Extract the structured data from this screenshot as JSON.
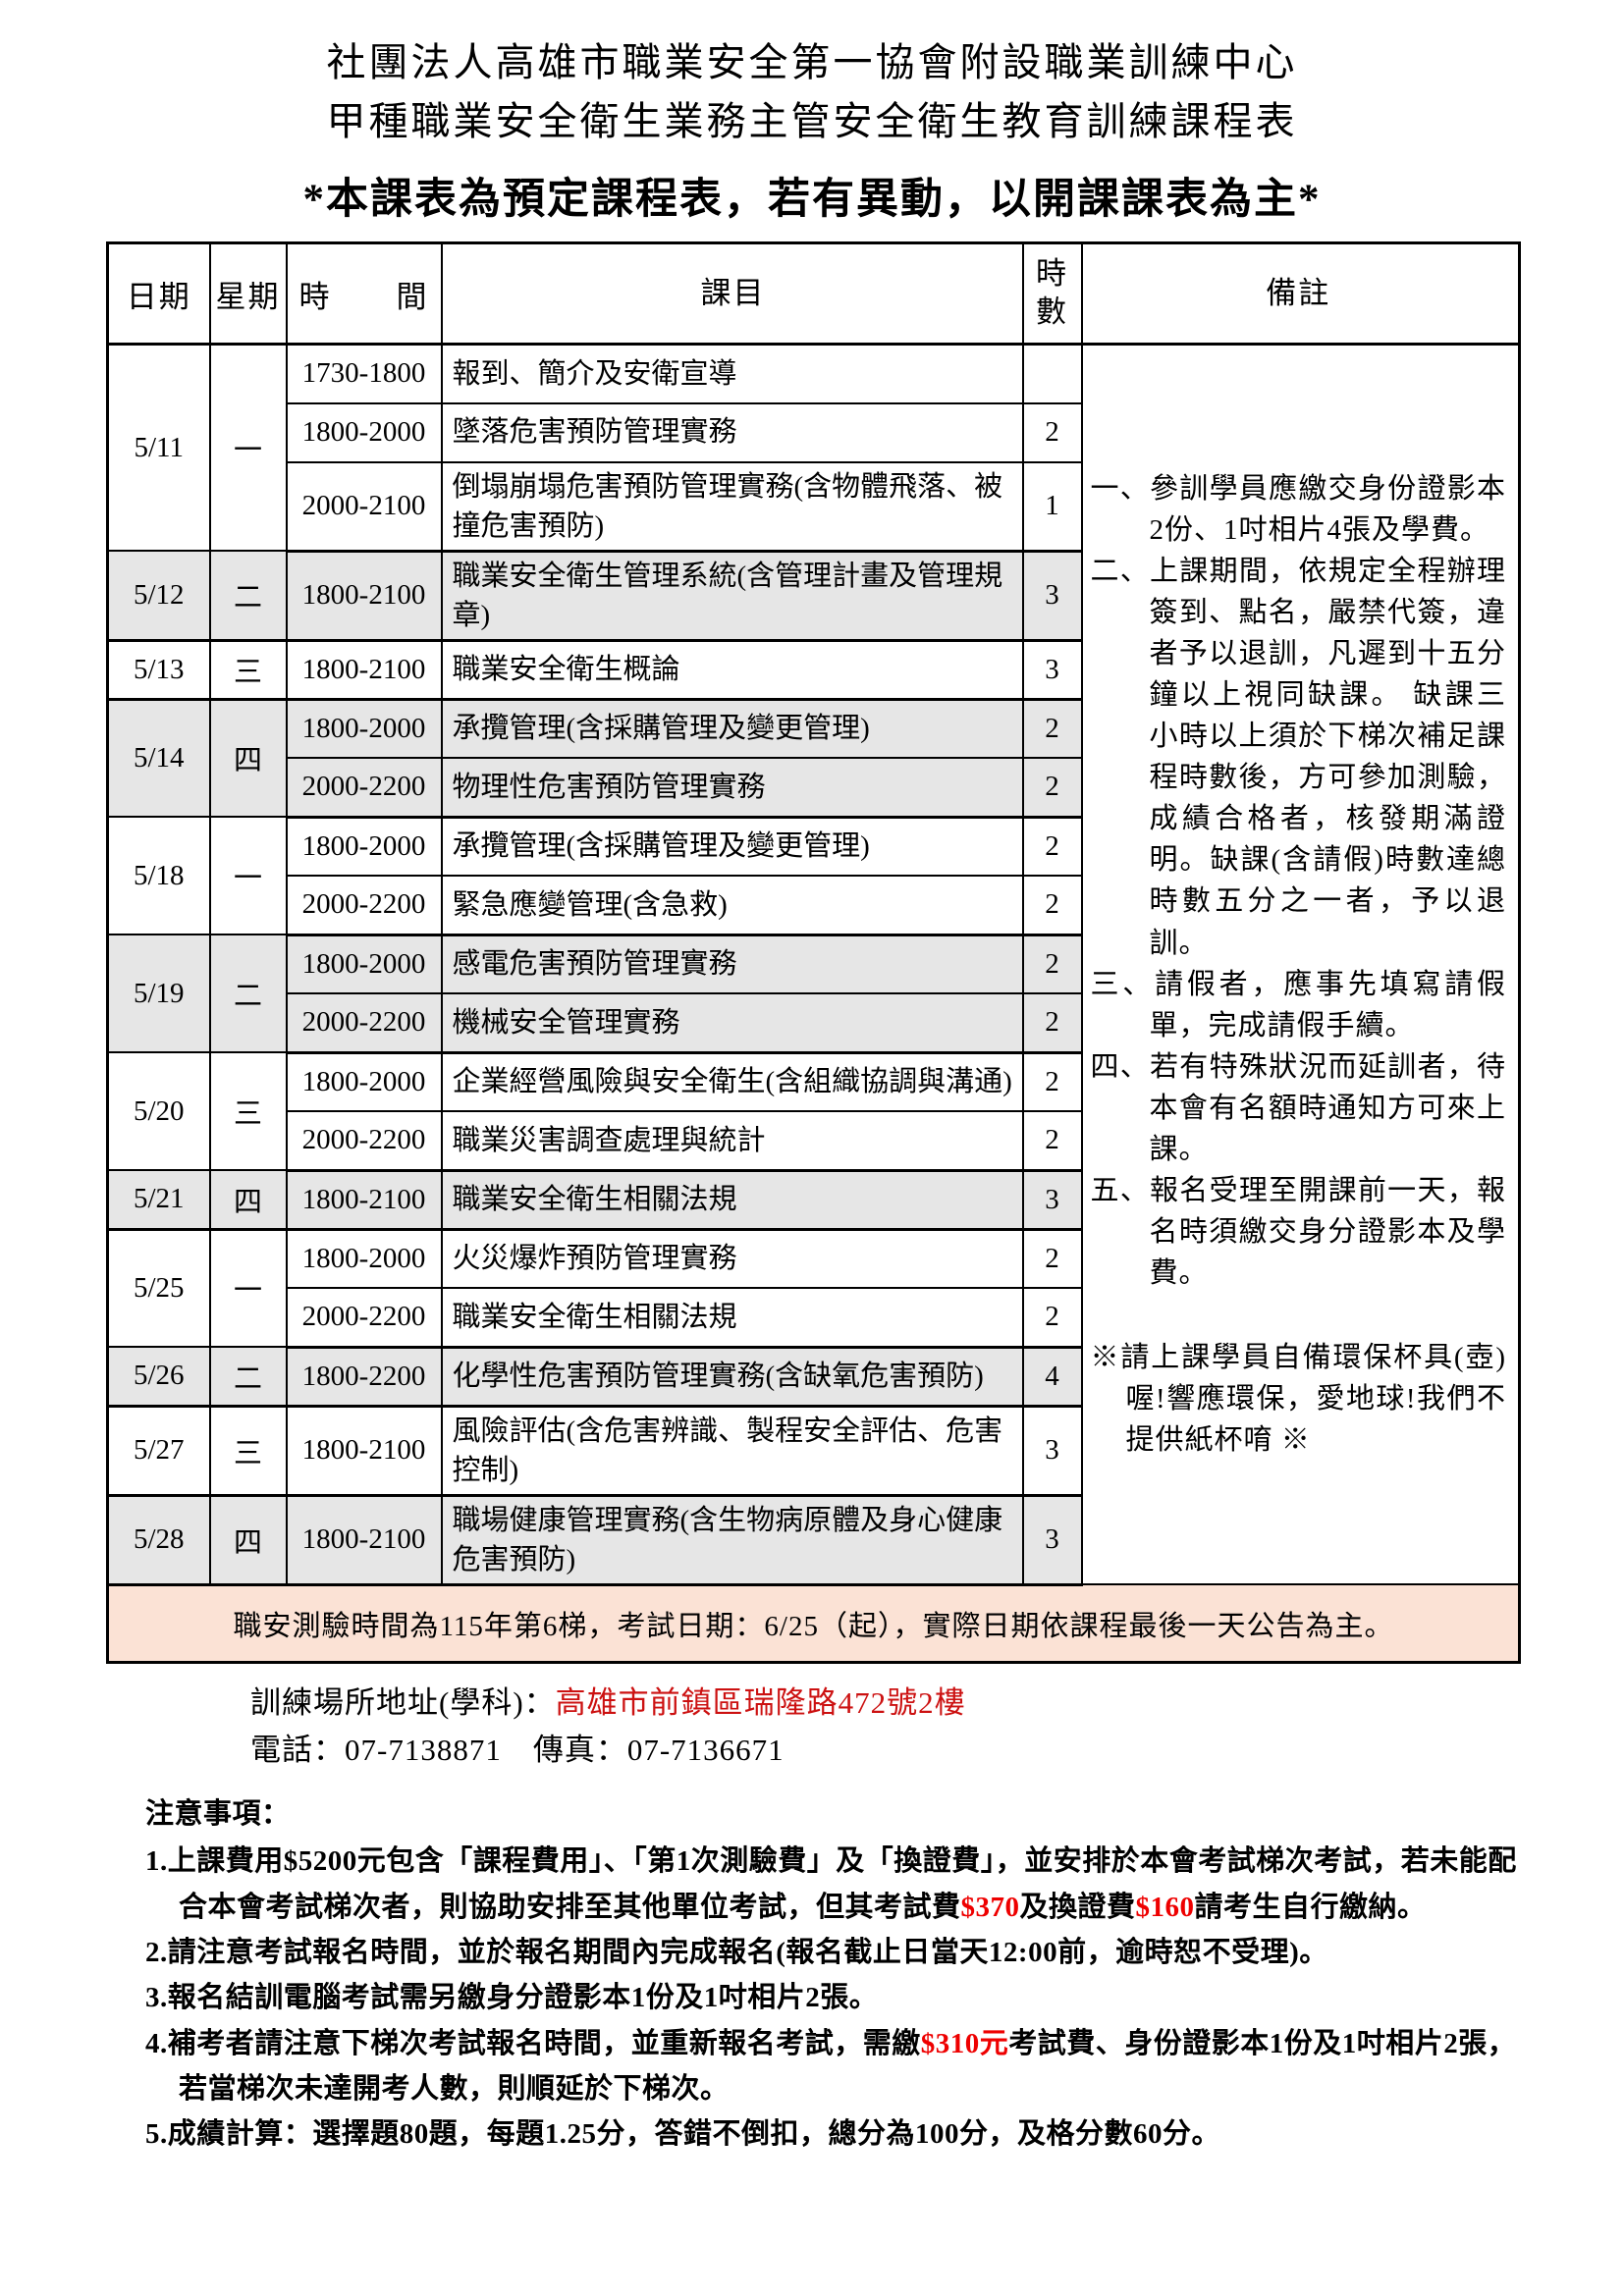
{
  "page": {
    "title_line1": "社團法人高雄市職業安全第一協會附設職業訓練中心",
    "title_line2": "甲種職業安全衛生業務主管安全衛生教育訓練課程表",
    "notice_line": "*本課表為預定課程表，若有異動，以開課課表為主*"
  },
  "table": {
    "headers": {
      "date": "日期",
      "weekday": "星期",
      "time": "時　　間",
      "subject": "課目",
      "hours": "時數",
      "remark": "備註"
    },
    "groups": [
      {
        "date": "5/11",
        "weekday": "一",
        "shaded": false,
        "sessions": [
          {
            "time": "1730-1800",
            "subject": "報到、簡介及安衛宣導",
            "hours": ""
          },
          {
            "time": "1800-2000",
            "subject": "墜落危害預防管理實務",
            "hours": "2"
          },
          {
            "time": "2000-2100",
            "subject": "倒塌崩塌危害預防管理實務(含物體飛落、被撞危害預防)",
            "hours": "1"
          }
        ]
      },
      {
        "date": "5/12",
        "weekday": "二",
        "shaded": true,
        "sessions": [
          {
            "time": "1800-2100",
            "subject": "職業安全衛生管理系統(含管理計畫及管理規章)",
            "hours": "3"
          }
        ]
      },
      {
        "date": "5/13",
        "weekday": "三",
        "shaded": false,
        "sessions": [
          {
            "time": "1800-2100",
            "subject": "職業安全衛生概論",
            "hours": "3"
          }
        ]
      },
      {
        "date": "5/14",
        "weekday": "四",
        "shaded": true,
        "sessions": [
          {
            "time": "1800-2000",
            "subject": "承攬管理(含採購管理及變更管理)",
            "hours": "2"
          },
          {
            "time": "2000-2200",
            "subject": "物理性危害預防管理實務",
            "hours": "2"
          }
        ]
      },
      {
        "date": "5/18",
        "weekday": "一",
        "shaded": false,
        "sessions": [
          {
            "time": "1800-2000",
            "subject": "承攬管理(含採購管理及變更管理)",
            "hours": "2"
          },
          {
            "time": "2000-2200",
            "subject": "緊急應變管理(含急救)",
            "hours": "2"
          }
        ]
      },
      {
        "date": "5/19",
        "weekday": "二",
        "shaded": true,
        "sessions": [
          {
            "time": "1800-2000",
            "subject": "感電危害預防管理實務",
            "hours": "2"
          },
          {
            "time": "2000-2200",
            "subject": "機械安全管理實務",
            "hours": "2"
          }
        ]
      },
      {
        "date": "5/20",
        "weekday": "三",
        "shaded": false,
        "sessions": [
          {
            "time": "1800-2000",
            "subject": "企業經營風險與安全衛生(含組織協調與溝通)",
            "hours": "2"
          },
          {
            "time": "2000-2200",
            "subject": "職業災害調查處理與統計",
            "hours": "2"
          }
        ]
      },
      {
        "date": "5/21",
        "weekday": "四",
        "shaded": true,
        "sessions": [
          {
            "time": "1800-2100",
            "subject": "職業安全衛生相關法規",
            "hours": "3"
          }
        ]
      },
      {
        "date": "5/25",
        "weekday": "一",
        "shaded": false,
        "sessions": [
          {
            "time": "1800-2000",
            "subject": "火災爆炸預防管理實務",
            "hours": "2"
          },
          {
            "time": "2000-2200",
            "subject": "職業安全衛生相關法規",
            "hours": "2"
          }
        ]
      },
      {
        "date": "5/26",
        "weekday": "二",
        "shaded": true,
        "sessions": [
          {
            "time": "1800-2200",
            "subject": "化學性危害預防管理實務(含缺氧危害預防)",
            "hours": "4"
          }
        ]
      },
      {
        "date": "5/27",
        "weekday": "三",
        "shaded": false,
        "sessions": [
          {
            "time": "1800-2100",
            "subject": "風險評估(含危害辨識、製程安全評估、危害控制)",
            "hours": "3"
          }
        ]
      },
      {
        "date": "5/28",
        "weekday": "四",
        "shaded": true,
        "sessions": [
          {
            "time": "1800-2100",
            "subject": "職場健康管理實務(含生物病原體及身心健康危害預防)",
            "hours": "3"
          }
        ]
      }
    ],
    "banner": "職安測驗時間為115年第6梯，考試日期：6/25（起），實際日期依課程最後一天公告為主。"
  },
  "remarks": {
    "items": [
      {
        "marker": "一、",
        "text": "參訓學員應繳交身份證影本2份、1吋相片4張及學費。",
        "eco": false
      },
      {
        "marker": "二、",
        "text": "上課期間，依規定全程辦理簽到、點名，嚴禁代簽，違者予以退訓，凡遲到十五分鐘以上視同缺課。 缺課三小時以上須於下梯次補足課程時數後，方可參加測驗，成績合格者，核發期滿證明。缺課(含請假)時數達總時數五分之一者，予以退訓。",
        "eco": false
      },
      {
        "marker": "三、",
        "text": "請假者，應事先填寫請假單，完成請假手續。",
        "eco": false
      },
      {
        "marker": "四、",
        "text": "若有特殊狀況而延訓者，待本會有名額時通知方可來上課。",
        "eco": false
      },
      {
        "marker": "五、",
        "text": "報名受理至開課前一天，報名時須繳交身分證影本及學費。",
        "eco": false
      },
      {
        "marker": "※",
        "text": "請上課學員自備環保杯具(壺)喔!響應環保，愛地球!我們不提供紙杯唷 ※",
        "eco": true
      }
    ]
  },
  "footer": {
    "address_label": "訓練場所地址(學科)：",
    "address_value": "高雄市前鎮區瑞隆路472號2樓",
    "phone_line": "電話：07-7138871　傳真：07-7136671"
  },
  "notes": {
    "heading": "注意事項：",
    "items": [
      {
        "num": "1.",
        "runs": [
          {
            "text": "上課費用$5200元包含「課程費用」、「第1次測驗費」及「換證費」，並安排於本會考試梯次考試，若未能配合本會考試梯次者，則協助安排至其他單位考試，但其考試費",
            "red": false
          },
          {
            "text": "$370",
            "red": true
          },
          {
            "text": "及換證費",
            "red": false
          },
          {
            "text": "$160",
            "red": true
          },
          {
            "text": "請考生自行繳納。",
            "red": false
          }
        ]
      },
      {
        "num": "2.",
        "runs": [
          {
            "text": "請注意考試報名時間，並於報名期間內完成報名(報名截止日當天12:00前，逾時恕不受理)。",
            "red": false
          }
        ]
      },
      {
        "num": "3.",
        "runs": [
          {
            "text": "報名結訓電腦考試需另繳身分證影本1份及1吋相片2張。",
            "red": false
          }
        ]
      },
      {
        "num": "4.",
        "runs": [
          {
            "text": "補考者請注意下梯次考試報名時間，並重新報名考試，需繳",
            "red": false
          },
          {
            "text": "$310元",
            "red": true
          },
          {
            "text": "考試費、身份證影本1份及1吋相片2張，若當梯次未達開考人數，則順延於下梯次。",
            "red": false
          }
        ]
      },
      {
        "num": "5.",
        "runs": [
          {
            "text": "成績計算：選擇題80題，每題1.25分，答錯不倒扣，總分為100分，及格分數60分。",
            "red": false
          }
        ]
      }
    ]
  },
  "colors": {
    "shaded_row": "#e6e6e6",
    "banner_bg": "#fbe2d5",
    "address_red": "#cc1111",
    "price_red": "#ee0000"
  }
}
